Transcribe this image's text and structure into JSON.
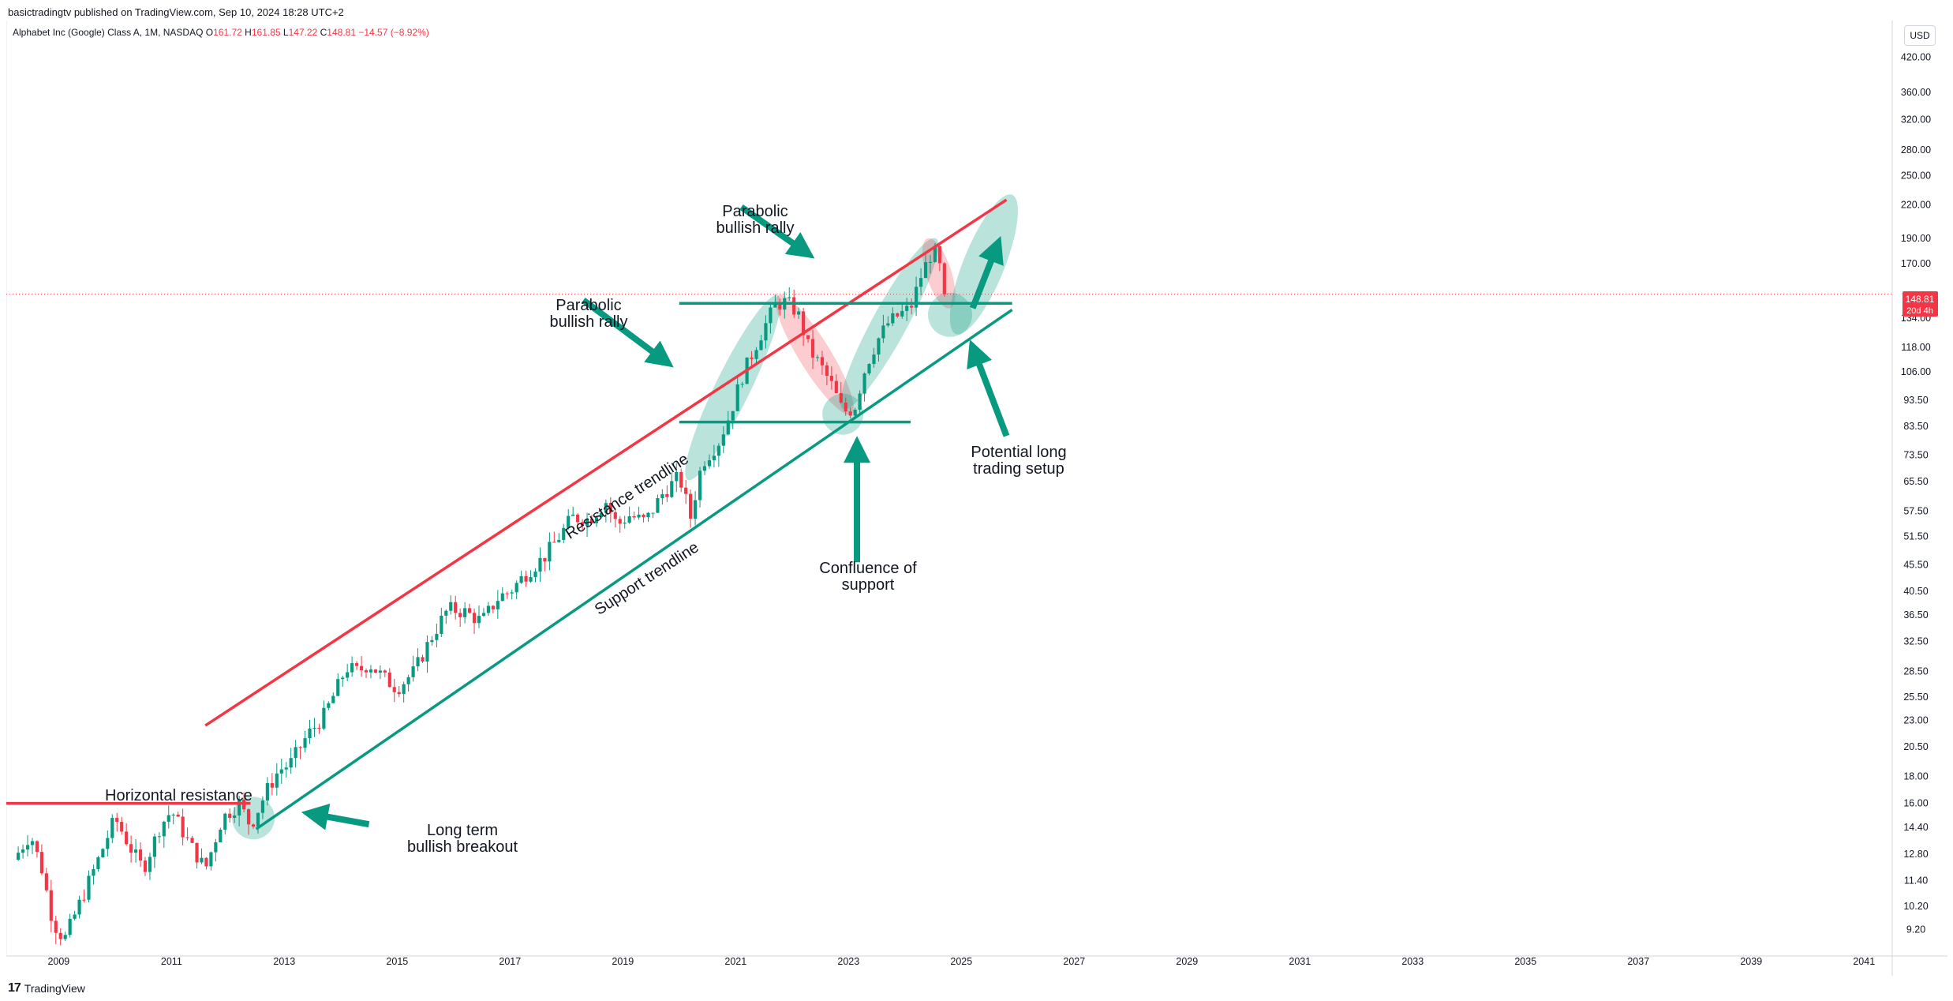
{
  "header": {
    "published": "basictradingtv published on TradingView.com, Sep 10, 2024 18:28 UTC+2",
    "instrument": "Alphabet Inc (Google) Class A, 1M, NASDAQ",
    "o_label": "O",
    "o_value": "161.72",
    "h_label": "H",
    "h_value": "161.85",
    "l_label": "L",
    "l_value": "147.22",
    "c_label": "C",
    "c_value": "148.81",
    "change": "−14.57 (−8.92%)"
  },
  "currency_button": "USD",
  "price_badge": {
    "price": "148.81",
    "countdown": "20d 4h"
  },
  "footer": {
    "logo": "17",
    "brand": "TradingView"
  },
  "colors": {
    "up": "#089981",
    "down": "#f23645",
    "support": "#089981",
    "resistance": "#f23645"
  },
  "chart_data": {
    "type": "candlestick",
    "symbol": "Alphabet Inc (Google) Class A",
    "interval": "1M",
    "y_scale": "log",
    "ylim": [
      8.2,
      480
    ],
    "xlim": [
      2008.1,
      2041.5
    ],
    "x_ticks": [
      "2009",
      "2011",
      "2013",
      "2015",
      "2017",
      "2019",
      "2021",
      "2023",
      "2025",
      "2027",
      "2029",
      "2031",
      "2033",
      "2035",
      "2037",
      "2039",
      "2041"
    ],
    "y_ticks": [
      "420.00",
      "360.00",
      "320.00",
      "280.00",
      "250.00",
      "220.00",
      "190.00",
      "170.00",
      "134.00",
      "118.00",
      "106.00",
      "93.50",
      "83.50",
      "73.50",
      "65.50",
      "57.50",
      "51.50",
      "45.50",
      "40.50",
      "36.50",
      "32.50",
      "28.50",
      "25.50",
      "23.00",
      "20.50",
      "18.00",
      "16.00",
      "14.40",
      "12.80",
      "11.40",
      "10.20",
      "9.20"
    ],
    "last_price": 148.81,
    "price_path": [
      [
        2008.2,
        12.5
      ],
      [
        2008.5,
        14.0
      ],
      [
        2008.7,
        12.0
      ],
      [
        2008.9,
        9.5
      ],
      [
        2009.1,
        8.8
      ],
      [
        2009.4,
        10.5
      ],
      [
        2009.7,
        12.5
      ],
      [
        2010.0,
        15.0
      ],
      [
        2010.3,
        13.0
      ],
      [
        2010.5,
        12.0
      ],
      [
        2010.8,
        14.5
      ],
      [
        2011.0,
        15.5
      ],
      [
        2011.3,
        13.5
      ],
      [
        2011.6,
        12.0
      ],
      [
        2011.9,
        15.0
      ],
      [
        2012.2,
        16.0
      ],
      [
        2012.4,
        14.5
      ],
      [
        2012.7,
        17.0
      ],
      [
        2012.9,
        18.5
      ],
      [
        2013.1,
        19.0
      ],
      [
        2013.4,
        21.5
      ],
      [
        2013.7,
        23.5
      ],
      [
        2013.9,
        26.0
      ],
      [
        2014.1,
        29.0
      ],
      [
        2014.3,
        28.5
      ],
      [
        2014.5,
        29.5
      ],
      [
        2014.8,
        27.5
      ],
      [
        2015.0,
        26.5
      ],
      [
        2015.3,
        28.5
      ],
      [
        2015.6,
        33.0
      ],
      [
        2015.9,
        37.5
      ],
      [
        2016.2,
        37.0
      ],
      [
        2016.5,
        35.5
      ],
      [
        2016.8,
        39.5
      ],
      [
        2017.0,
        40.5
      ],
      [
        2017.3,
        44.0
      ],
      [
        2017.6,
        47.0
      ],
      [
        2017.9,
        52.0
      ],
      [
        2018.1,
        56.0
      ],
      [
        2018.4,
        55.5
      ],
      [
        2018.7,
        60.0
      ],
      [
        2018.9,
        54.0
      ],
      [
        2019.1,
        56.5
      ],
      [
        2019.4,
        55.0
      ],
      [
        2019.7,
        62.0
      ],
      [
        2020.0,
        67.0
      ],
      [
        2020.2,
        56.0
      ],
      [
        2020.4,
        71.0
      ],
      [
        2020.7,
        78.0
      ],
      [
        2020.9,
        88.0
      ],
      [
        2021.1,
        103.0
      ],
      [
        2021.4,
        122.0
      ],
      [
        2021.7,
        142.0
      ],
      [
        2021.9,
        144.0
      ],
      [
        2022.1,
        137.0
      ],
      [
        2022.3,
        117.0
      ],
      [
        2022.5,
        109.0
      ],
      [
        2022.7,
        100.0
      ],
      [
        2022.9,
        89.0
      ],
      [
        2023.1,
        90.0
      ],
      [
        2023.3,
        108.0
      ],
      [
        2023.5,
        121.0
      ],
      [
        2023.7,
        131.0
      ],
      [
        2023.9,
        136.0
      ],
      [
        2024.1,
        140.0
      ],
      [
        2024.3,
        163.0
      ],
      [
        2024.5,
        181.0
      ],
      [
        2024.6,
        171.0
      ],
      [
        2024.7,
        148.81
      ]
    ],
    "annotations": {
      "horizontal_resistance": "Horizontal resistance",
      "long_term_1": "Long term",
      "long_term_2": "bullish breakout",
      "resistance_trendline": "Resistance trendline",
      "support_trendline": "Support trendline",
      "parabolic_a_1": "Parabolic",
      "parabolic_a_2": "bullish rally",
      "parabolic_b_1": "Parabolic",
      "parabolic_b_2": "bullish rally",
      "confluence_1": "Confluence of",
      "confluence_2": "support",
      "potential_1": "Potential long",
      "potential_2": "trading setup"
    },
    "lines": {
      "horizontal_resistance": {
        "from": [
          2008.0,
          16.0
        ],
        "to": [
          2012.4,
          16.0
        ],
        "color": "#f23645"
      },
      "resistance_trendline": {
        "from": [
          2011.6,
          22.5
        ],
        "to": [
          2025.8,
          225.0
        ],
        "color": "#f23645"
      },
      "support_trendline": {
        "from": [
          2012.5,
          14.3
        ],
        "to": [
          2025.9,
          139.0
        ],
        "color": "#089981"
      },
      "upper_horizontal": {
        "from": [
          2020.0,
          143.0
        ],
        "to": [
          2025.9,
          143.0
        ],
        "color": "#089981"
      },
      "lower_horizontal": {
        "from": [
          2020.0,
          85.0
        ],
        "to": [
          2024.1,
          85.0
        ],
        "color": "#089981"
      }
    }
  }
}
